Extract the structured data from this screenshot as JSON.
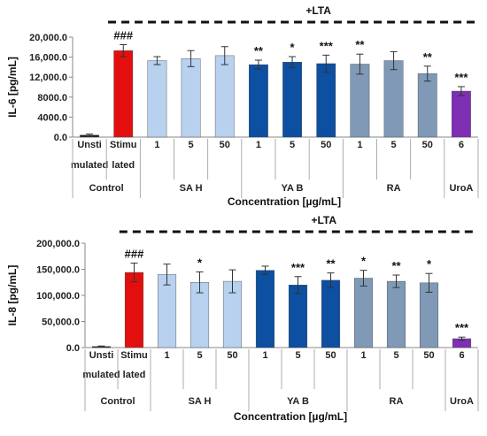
{
  "chart_data": [
    {
      "type": "bar",
      "ylabel": "IL-6 [pg/mL]",
      "xlabel": "Concentration [µg/mL]",
      "treatment_label": "+LTA",
      "ylim": [
        0,
        20000
      ],
      "yticks": [
        "0.0",
        "4000.0",
        "8000.0",
        "12,000.0",
        "16,000.0",
        "20,000.0"
      ],
      "ytick_values": [
        0,
        4000,
        8000,
        12000,
        16000,
        20000
      ],
      "categories": [
        [
          "Unsti",
          "mulated"
        ],
        [
          "Stimu",
          "lated"
        ],
        [
          "1"
        ],
        [
          "5"
        ],
        [
          "50"
        ],
        [
          "1"
        ],
        [
          "5"
        ],
        [
          "50"
        ],
        [
          "1"
        ],
        [
          "5"
        ],
        [
          "50"
        ],
        [
          "6"
        ]
      ],
      "groups": [
        {
          "label": "Control",
          "start": 0,
          "end": 1
        },
        {
          "label": "SA H",
          "start": 2,
          "end": 4
        },
        {
          "label": "YA B",
          "start": 5,
          "end": 7
        },
        {
          "label": "RA",
          "start": 8,
          "end": 10
        },
        {
          "label": "UroA",
          "start": 11,
          "end": 11
        }
      ],
      "values": [
        400,
        17300,
        15300,
        15700,
        16300,
        14500,
        15000,
        14700,
        14600,
        15300,
        12700,
        9200
      ],
      "errors": [
        200,
        1200,
        800,
        1600,
        1800,
        900,
        1100,
        1700,
        2000,
        1800,
        1500,
        900
      ],
      "annotations": [
        "",
        "###",
        "",
        "",
        "",
        "**",
        "*",
        "***",
        "**",
        "",
        "**",
        "***"
      ],
      "colors": [
        "#222222",
        "#e30f0f",
        "#b7d1ef",
        "#b7d1ef",
        "#b7d1ef",
        "#0d4fa0",
        "#0d4fa0",
        "#0d4fa0",
        "#7f99b6",
        "#7f99b6",
        "#7f99b6",
        "#7f2fb3"
      ]
    },
    {
      "type": "bar",
      "ylabel": "IL-8 [pg/mL]",
      "xlabel": "Concentration [µg/mL]",
      "treatment_label": "+LTA",
      "ylim": [
        0,
        200000
      ],
      "yticks": [
        "0.0",
        "50,000.0",
        "100,000.0",
        "150,000.0",
        "200,000.0"
      ],
      "ytick_values": [
        0,
        50000,
        100000,
        150000,
        200000
      ],
      "categories": [
        [
          "Unsti",
          "mulated"
        ],
        [
          "Stimu",
          "lated"
        ],
        [
          "1"
        ],
        [
          "5"
        ],
        [
          "50"
        ],
        [
          "1"
        ],
        [
          "5"
        ],
        [
          "50"
        ],
        [
          "1"
        ],
        [
          "5"
        ],
        [
          "50"
        ],
        [
          "6"
        ]
      ],
      "groups": [
        {
          "label": "Control",
          "start": 0,
          "end": 1
        },
        {
          "label": "SA H",
          "start": 2,
          "end": 4
        },
        {
          "label": "YA B",
          "start": 5,
          "end": 7
        },
        {
          "label": "RA",
          "start": 8,
          "end": 10
        },
        {
          "label": "UroA",
          "start": 11,
          "end": 11
        }
      ],
      "values": [
        2000,
        144000,
        140000,
        125000,
        127000,
        148000,
        120000,
        129000,
        133000,
        127000,
        124000,
        17000
      ],
      "errors": [
        1000,
        18000,
        20000,
        20000,
        22000,
        8000,
        16000,
        14000,
        15000,
        12000,
        18000,
        3000
      ],
      "annotations": [
        "",
        "###",
        "",
        "*",
        "",
        "",
        "***",
        "**",
        "*",
        "**",
        "*",
        "***"
      ],
      "colors": [
        "#222222",
        "#e30f0f",
        "#b7d1ef",
        "#b7d1ef",
        "#b7d1ef",
        "#0d4fa0",
        "#0d4fa0",
        "#0d4fa0",
        "#7f99b6",
        "#7f99b6",
        "#7f99b6",
        "#7f2fb3"
      ]
    }
  ]
}
